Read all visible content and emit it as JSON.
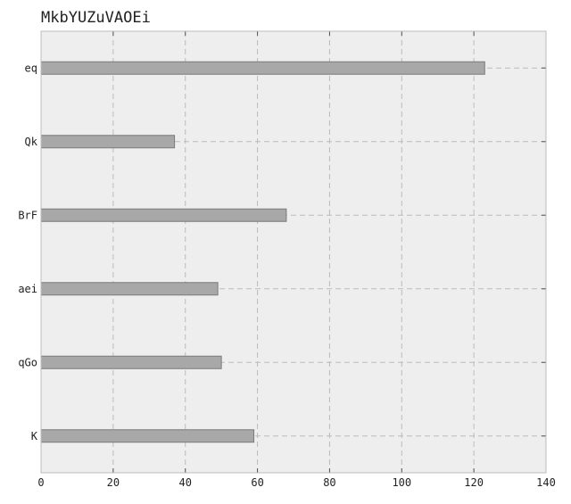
{
  "chart_data": {
    "type": "bar",
    "orientation": "horizontal",
    "title": "MkbYUZuVAOEi",
    "xlabel": "",
    "ylabel": "",
    "categories": [
      "eq",
      "Qk",
      "BrF",
      "aei",
      "qGo",
      "K"
    ],
    "values": [
      123,
      37,
      68,
      49,
      50,
      59
    ],
    "xlim": [
      0,
      140
    ],
    "xticks": [
      0,
      20,
      40,
      60,
      80,
      100,
      120,
      140
    ],
    "grid": true,
    "legend": "none",
    "colors": {
      "bar_fill": "#a8a8a8",
      "bar_edge": "#7a7a7a",
      "plot_background": "#eeeeee",
      "grid": "#bbbbbb",
      "axes_edge": "#bcbcbc"
    }
  }
}
